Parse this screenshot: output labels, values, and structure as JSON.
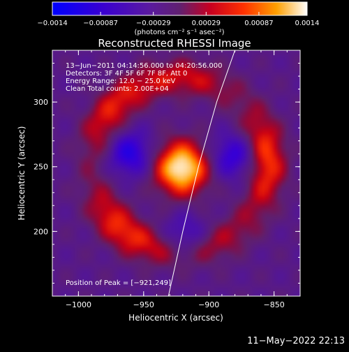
{
  "chart_data": {
    "type": "heatmap",
    "title": "Reconstructed RHESSI Image",
    "xlabel": "Heliocentric X (arcsec)",
    "ylabel": "Heliocentric Y (arcsec)",
    "xlim": [
      -1020,
      -830
    ],
    "ylim": [
      150,
      340
    ],
    "x_ticks": [
      {
        "value": -1000,
        "label": "−1000"
      },
      {
        "value": -950,
        "label": "−950"
      },
      {
        "value": -900,
        "label": "−900"
      },
      {
        "value": -850,
        "label": "−850"
      }
    ],
    "y_ticks": [
      {
        "value": 200,
        "label": "200"
      },
      {
        "value": 250,
        "label": "250"
      },
      {
        "value": 300,
        "label": "300"
      }
    ],
    "colorbar": {
      "range": [
        -0.0014,
        0.0014
      ],
      "ticks": [
        {
          "value": -0.0014,
          "label": "−0.0014"
        },
        {
          "value": -0.00087,
          "label": "−0.00087"
        },
        {
          "value": -0.00029,
          "label": "−0.00029"
        },
        {
          "value": 0.00029,
          "label": "0.00029"
        },
        {
          "value": 0.00087,
          "label": "0.00087"
        },
        {
          "value": 0.0014,
          "label": "0.0014"
        }
      ],
      "units": "(photons cm⁻² s⁻¹ asec⁻²)"
    },
    "info_lines": [
      "13−Jun−2011 04:14:56.000 to 04:20:56.000",
      "Detectors: 3F 4F 5F 6F 7F 8F, Att 0",
      "Energy Range: 12.0 − 25.0 keV",
      "Clean     Total counts: 2.00E+04"
    ],
    "peak": {
      "x": -921,
      "y": 249,
      "label": "Position of Peak = [−921,249]"
    },
    "limb_line": [
      [
        -931,
        150
      ],
      [
        -920,
        200
      ],
      [
        -908,
        250
      ],
      [
        -894,
        300
      ],
      [
        -880,
        340
      ]
    ],
    "image_features": {
      "core_peak": {
        "x": -921,
        "y": 249,
        "value": 0.0014
      },
      "ring_center": {
        "x": -922,
        "y": 252
      },
      "ring_radius_arcsec": [
        57,
        77
      ],
      "ring_value": 0.0008,
      "negative_lobes": [
        {
          "x": -960,
          "y": 260,
          "value": -0.0008
        },
        {
          "x": -882,
          "y": 258,
          "value": -0.0007
        },
        {
          "x": -918,
          "y": 195,
          "value": -0.0006
        }
      ]
    }
  },
  "footer": {
    "date": "11−May−2022 22:13"
  }
}
